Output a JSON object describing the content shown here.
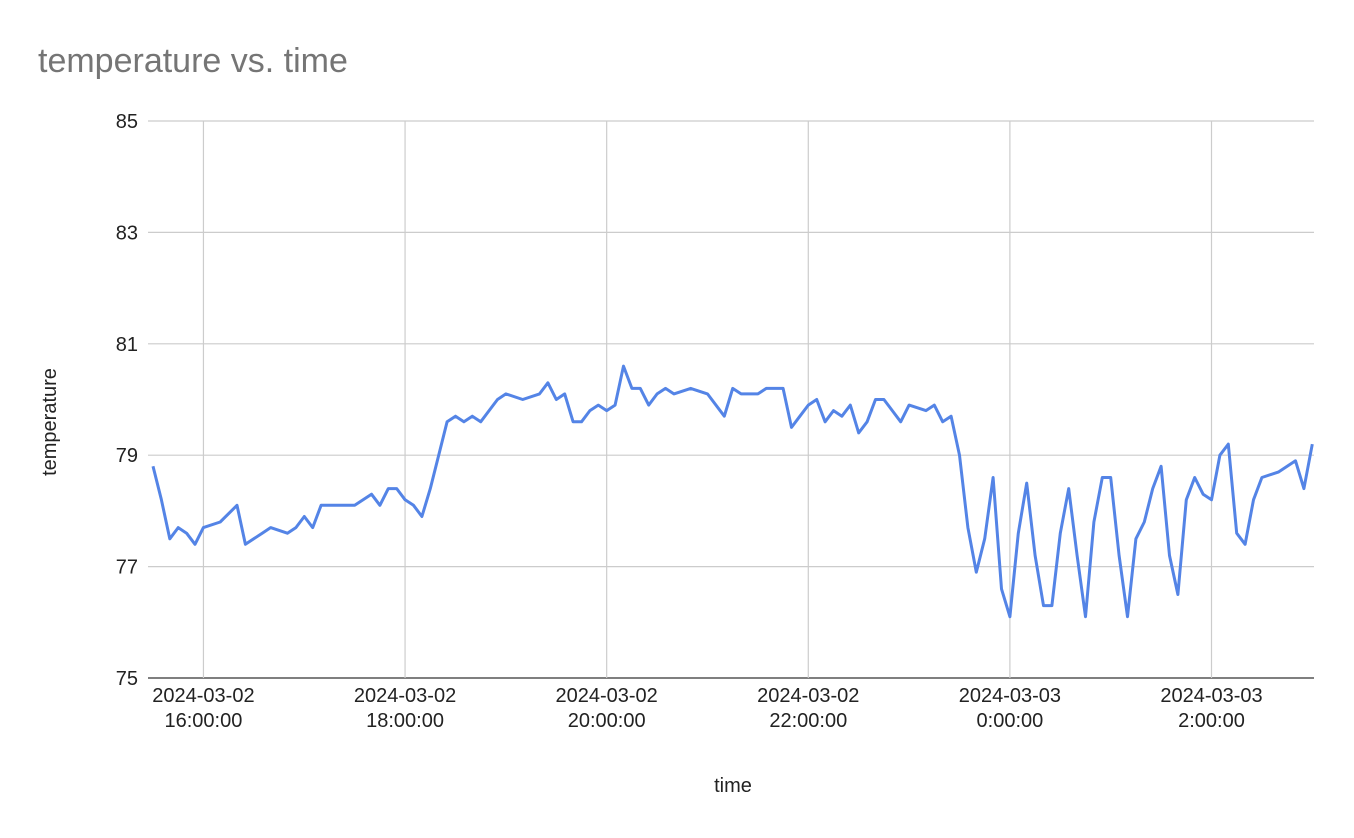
{
  "chart_data": {
    "type": "line",
    "title": "temperature vs. time",
    "x_label": "time",
    "y_label": "temperature",
    "color": "#5484e6",
    "grid": true,
    "xlim": [
      "2024-03-02 15:27:00",
      "2024-03-03 03:01:00"
    ],
    "xticks": [
      {
        "value": "2024-03-02 16:00:00",
        "label": "2024-03-02\n16:00:00"
      },
      {
        "value": "2024-03-02 18:00:00",
        "label": "2024-03-02\n18:00:00"
      },
      {
        "value": "2024-03-02 20:00:00",
        "label": "2024-03-02\n20:00:00"
      },
      {
        "value": "2024-03-02 22:00:00",
        "label": "2024-03-02\n22:00:00"
      },
      {
        "value": "2024-03-03 00:00:00",
        "label": "2024-03-03\n0:00:00"
      },
      {
        "value": "2024-03-03 02:00:00",
        "label": "2024-03-03\n2:00:00"
      }
    ],
    "ylim": [
      75,
      85
    ],
    "yticks": [
      75,
      77,
      79,
      81,
      83,
      85
    ],
    "x": [
      "2024-03-02 15:30:00",
      "2024-03-02 15:35:00",
      "2024-03-02 15:40:00",
      "2024-03-02 15:45:00",
      "2024-03-02 15:50:00",
      "2024-03-02 15:55:00",
      "2024-03-02 16:00:00",
      "2024-03-02 16:10:00",
      "2024-03-02 16:20:00",
      "2024-03-02 16:25:00",
      "2024-03-02 16:35:00",
      "2024-03-02 16:40:00",
      "2024-03-02 16:50:00",
      "2024-03-02 16:55:00",
      "2024-03-02 17:00:00",
      "2024-03-02 17:05:00",
      "2024-03-02 17:10:00",
      "2024-03-02 17:20:00",
      "2024-03-02 17:30:00",
      "2024-03-02 17:35:00",
      "2024-03-02 17:40:00",
      "2024-03-02 17:45:00",
      "2024-03-02 17:50:00",
      "2024-03-02 17:55:00",
      "2024-03-02 18:00:00",
      "2024-03-02 18:05:00",
      "2024-03-02 18:10:00",
      "2024-03-02 18:15:00",
      "2024-03-02 18:20:00",
      "2024-03-02 18:25:00",
      "2024-03-02 18:30:00",
      "2024-03-02 18:35:00",
      "2024-03-02 18:40:00",
      "2024-03-02 18:45:00",
      "2024-03-02 18:50:00",
      "2024-03-02 18:55:00",
      "2024-03-02 19:00:00",
      "2024-03-02 19:10:00",
      "2024-03-02 19:20:00",
      "2024-03-02 19:25:00",
      "2024-03-02 19:30:00",
      "2024-03-02 19:35:00",
      "2024-03-02 19:40:00",
      "2024-03-02 19:45:00",
      "2024-03-02 19:50:00",
      "2024-03-02 19:55:00",
      "2024-03-02 20:00:00",
      "2024-03-02 20:05:00",
      "2024-03-02 20:10:00",
      "2024-03-02 20:15:00",
      "2024-03-02 20:20:00",
      "2024-03-02 20:25:00",
      "2024-03-02 20:30:00",
      "2024-03-02 20:35:00",
      "2024-03-02 20:40:00",
      "2024-03-02 20:50:00",
      "2024-03-02 21:00:00",
      "2024-03-02 21:10:00",
      "2024-03-02 21:15:00",
      "2024-03-02 21:20:00",
      "2024-03-02 21:30:00",
      "2024-03-02 21:35:00",
      "2024-03-02 21:45:00",
      "2024-03-02 21:50:00",
      "2024-03-02 21:55:00",
      "2024-03-02 22:00:00",
      "2024-03-02 22:05:00",
      "2024-03-02 22:10:00",
      "2024-03-02 22:15:00",
      "2024-03-02 22:20:00",
      "2024-03-02 22:25:00",
      "2024-03-02 22:30:00",
      "2024-03-02 22:35:00",
      "2024-03-02 22:40:00",
      "2024-03-02 22:45:00",
      "2024-03-02 22:50:00",
      "2024-03-02 22:55:00",
      "2024-03-02 23:00:00",
      "2024-03-02 23:10:00",
      "2024-03-02 23:15:00",
      "2024-03-02 23:20:00",
      "2024-03-02 23:25:00",
      "2024-03-02 23:30:00",
      "2024-03-02 23:35:00",
      "2024-03-02 23:40:00",
      "2024-03-02 23:45:00",
      "2024-03-02 23:50:00",
      "2024-03-02 23:55:00",
      "2024-03-03 00:00:00",
      "2024-03-03 00:05:00",
      "2024-03-03 00:10:00",
      "2024-03-03 00:15:00",
      "2024-03-03 00:20:00",
      "2024-03-03 00:25:00",
      "2024-03-03 00:30:00",
      "2024-03-03 00:35:00",
      "2024-03-03 00:40:00",
      "2024-03-03 00:45:00",
      "2024-03-03 00:50:00",
      "2024-03-03 00:55:00",
      "2024-03-03 01:00:00",
      "2024-03-03 01:05:00",
      "2024-03-03 01:10:00",
      "2024-03-03 01:15:00",
      "2024-03-03 01:20:00",
      "2024-03-03 01:25:00",
      "2024-03-03 01:30:00",
      "2024-03-03 01:35:00",
      "2024-03-03 01:40:00",
      "2024-03-03 01:45:00",
      "2024-03-03 01:50:00",
      "2024-03-03 01:55:00",
      "2024-03-03 02:00:00",
      "2024-03-03 02:05:00",
      "2024-03-03 02:10:00",
      "2024-03-03 02:15:00",
      "2024-03-03 02:20:00",
      "2024-03-03 02:25:00",
      "2024-03-03 02:30:00",
      "2024-03-03 02:40:00",
      "2024-03-03 02:50:00",
      "2024-03-03 02:55:00",
      "2024-03-03 03:00:00"
    ],
    "values": [
      78.8,
      78.2,
      77.5,
      77.7,
      77.6,
      77.4,
      77.7,
      77.8,
      78.1,
      77.4,
      77.6,
      77.7,
      77.6,
      77.7,
      77.9,
      77.7,
      78.1,
      78.1,
      78.1,
      78.2,
      78.3,
      78.1,
      78.4,
      78.4,
      78.2,
      78.1,
      77.9,
      78.4,
      79.0,
      79.6,
      79.7,
      79.6,
      79.7,
      79.6,
      79.8,
      80.0,
      80.1,
      80.0,
      80.1,
      80.3,
      80.0,
      80.1,
      79.6,
      79.6,
      79.8,
      79.9,
      79.8,
      79.9,
      80.6,
      80.2,
      80.2,
      79.9,
      80.1,
      80.2,
      80.1,
      80.2,
      80.1,
      79.7,
      80.2,
      80.1,
      80.1,
      80.2,
      80.2,
      79.5,
      79.7,
      79.9,
      80.0,
      79.6,
      79.8,
      79.7,
      79.9,
      79.4,
      79.6,
      80.0,
      80.0,
      79.8,
      79.6,
      79.9,
      79.8,
      79.9,
      79.6,
      79.7,
      79.0,
      77.7,
      76.9,
      77.5,
      78.6,
      76.6,
      76.1,
      77.6,
      78.5,
      77.2,
      76.3,
      76.3,
      77.6,
      78.4,
      77.2,
      76.1,
      77.8,
      78.6,
      78.6,
      77.2,
      76.1,
      77.5,
      77.8,
      78.4,
      78.8,
      77.2,
      76.5,
      78.2,
      78.6,
      78.3,
      78.2,
      79.0,
      79.2,
      77.6,
      77.4,
      78.2,
      78.6,
      78.7,
      78.9,
      78.4,
      79.2
    ]
  }
}
